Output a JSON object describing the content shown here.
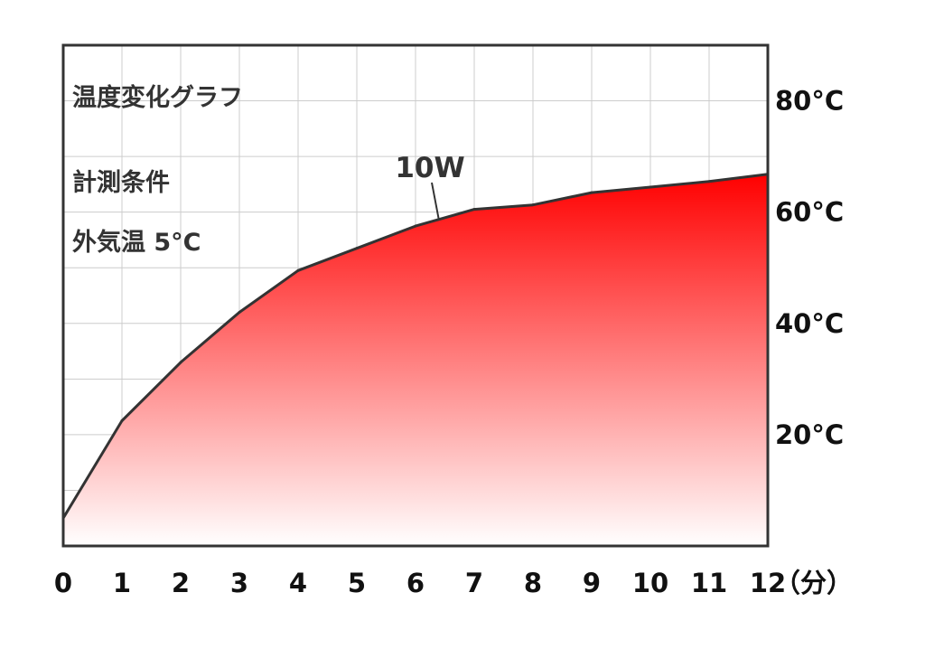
{
  "chart_data": {
    "type": "area",
    "title": "温度変化グラフ",
    "annotations": [
      "計測条件",
      "外気温 5°C"
    ],
    "series": [
      {
        "name": "10W",
        "x": [
          0,
          1,
          2,
          3,
          4,
          5,
          6,
          7,
          8,
          9,
          10,
          11,
          12
        ],
        "y": [
          5,
          22.5,
          33,
          42,
          49.5,
          53.5,
          57.5,
          60.5,
          61.3,
          63.5,
          64.5,
          65.5,
          66.8
        ]
      }
    ],
    "x_ticks": [
      "0",
      "1",
      "2",
      "3",
      "4",
      "5",
      "6",
      "7",
      "8",
      "9",
      "10",
      "11",
      "12"
    ],
    "x_unit": "（分）",
    "y_ticks": [
      {
        "value": 20,
        "label": "20°C"
      },
      {
        "value": 40,
        "label": "40°C"
      },
      {
        "value": 60,
        "label": "60°C"
      },
      {
        "value": 80,
        "label": "80°C"
      }
    ],
    "xlim": [
      0,
      12
    ],
    "ylim": [
      0,
      90
    ],
    "grid": true,
    "colors": {
      "fill_top": "#ff0000",
      "fill_bottom": "#ffffff",
      "line": "#333333",
      "grid": "#cccccc",
      "frame": "#333333"
    }
  }
}
